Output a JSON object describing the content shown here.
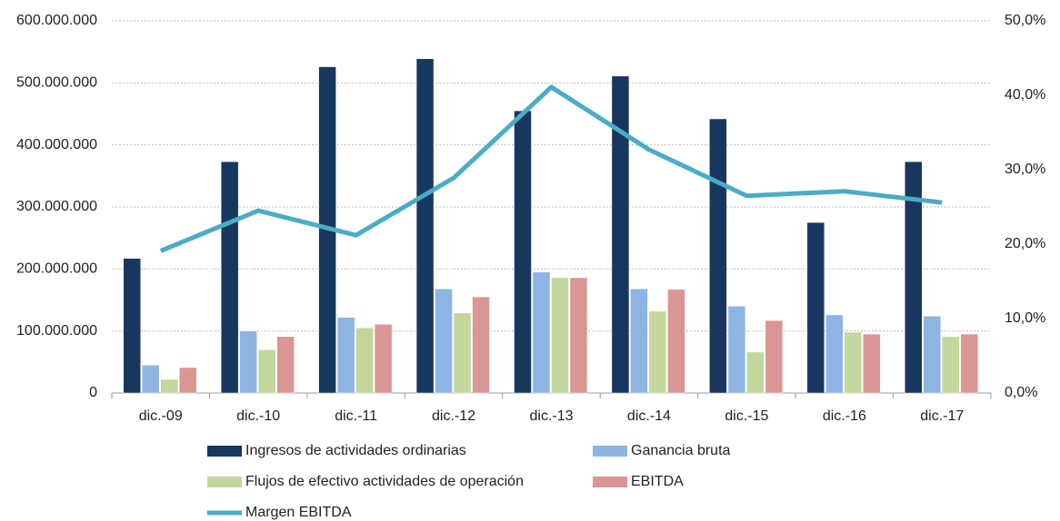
{
  "chart_data": {
    "type": "bar",
    "categories": [
      "dic.-09",
      "dic.-10",
      "dic.-11",
      "dic.-12",
      "dic.-13",
      "dic.-14",
      "dic.-15",
      "dic.-16",
      "dic.-17"
    ],
    "series": [
      {
        "name": "Ingresos de actividades ordinarias",
        "color": "#17375e",
        "values": [
          217000000,
          373000000,
          526000000,
          539000000,
          455000000,
          511000000,
          442000000,
          275000000,
          373000000
        ]
      },
      {
        "name": "Ganancia bruta",
        "color": "#8eb4e3",
        "values": [
          45000000,
          100000000,
          122000000,
          168000000,
          195000000,
          168000000,
          140000000,
          126000000,
          124000000
        ]
      },
      {
        "name": "Flujos de efectivo  actividades de operación",
        "color": "#c3d69b",
        "values": [
          22000000,
          70000000,
          105000000,
          129000000,
          186000000,
          132000000,
          66000000,
          98000000,
          91000000
        ]
      },
      {
        "name": "EBITDA",
        "color": "#d99694",
        "values": [
          41000000,
          91000000,
          111000000,
          155000000,
          186000000,
          167000000,
          117000000,
          95000000,
          95000000
        ]
      },
      {
        "name": "Margen EBITDA",
        "color": "#4bacc6",
        "type": "line",
        "axis": "y2",
        "values": [
          19.1,
          24.5,
          21.2,
          28.9,
          41.1,
          32.7,
          26.5,
          27.1,
          25.6
        ]
      }
    ],
    "ylim": [
      0,
      600000000
    ],
    "yticks": [
      {
        "value": 0,
        "label": "0"
      },
      {
        "value": 100000000,
        "label": "100.000.000"
      },
      {
        "value": 200000000,
        "label": "200.000.000"
      },
      {
        "value": 300000000,
        "label": "300.000.000"
      },
      {
        "value": 400000000,
        "label": "400.000.000"
      },
      {
        "value": 500000000,
        "label": "500.000.000"
      },
      {
        "value": 600000000,
        "label": "600.000.000"
      }
    ],
    "y2lim": [
      0,
      50
    ],
    "y2ticks": [
      {
        "value": 0,
        "label": "0,0%"
      },
      {
        "value": 10,
        "label": "10,0%"
      },
      {
        "value": 20,
        "label": "20,0%"
      },
      {
        "value": 30,
        "label": "30,0%"
      },
      {
        "value": 40,
        "label": "40,0%"
      },
      {
        "value": 50,
        "label": "50,0%"
      }
    ],
    "grid": true
  }
}
